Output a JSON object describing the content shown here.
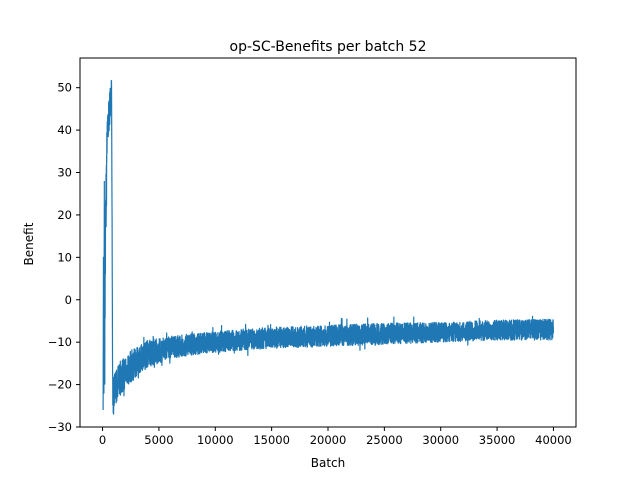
{
  "chart_data": {
    "type": "line",
    "title": "op-SC-Benefits per batch 52",
    "xlabel": "Batch",
    "ylabel": "Benefit",
    "xlim": [
      -2000,
      42000
    ],
    "ylim": [
      -30,
      57
    ],
    "xticks": [
      0,
      5000,
      10000,
      15000,
      20000,
      25000,
      30000,
      35000,
      40000
    ],
    "yticks": [
      -30,
      -20,
      -10,
      0,
      10,
      20,
      30,
      40,
      50
    ],
    "grid": false,
    "legend": "none",
    "series_color": "#1f77b4",
    "series": [
      {
        "band": [
          {
            "x": 200,
            "lo": -20,
            "hi": 25
          },
          {
            "x": 400,
            "lo": 34,
            "hi": 42
          },
          {
            "x": 600,
            "lo": 40,
            "hi": 49
          },
          {
            "x": 800,
            "lo": 44,
            "hi": 53
          },
          {
            "x": 900,
            "lo": -26,
            "hi": -18
          },
          {
            "x": 1500,
            "lo": -23,
            "hi": -15
          },
          {
            "x": 2000,
            "lo": -21,
            "hi": -13
          },
          {
            "x": 3000,
            "lo": -18,
            "hi": -11
          },
          {
            "x": 4000,
            "lo": -16,
            "hi": -9.5
          },
          {
            "x": 5000,
            "lo": -15,
            "hi": -9
          },
          {
            "x": 6000,
            "lo": -14,
            "hi": -8.5
          },
          {
            "x": 8000,
            "lo": -13,
            "hi": -8
          },
          {
            "x": 10000,
            "lo": -12.5,
            "hi": -7.5
          },
          {
            "x": 12000,
            "lo": -12,
            "hi": -7
          },
          {
            "x": 15000,
            "lo": -11.5,
            "hi": -6.5
          },
          {
            "x": 20000,
            "lo": -11,
            "hi": -6
          },
          {
            "x": 25000,
            "lo": -10.5,
            "hi": -5.5
          },
          {
            "x": 30000,
            "lo": -10,
            "hi": -5.3
          },
          {
            "x": 35000,
            "lo": -9.5,
            "hi": -4.8
          },
          {
            "x": 40000,
            "lo": -9.5,
            "hi": -4.5
          }
        ]
      }
    ]
  }
}
